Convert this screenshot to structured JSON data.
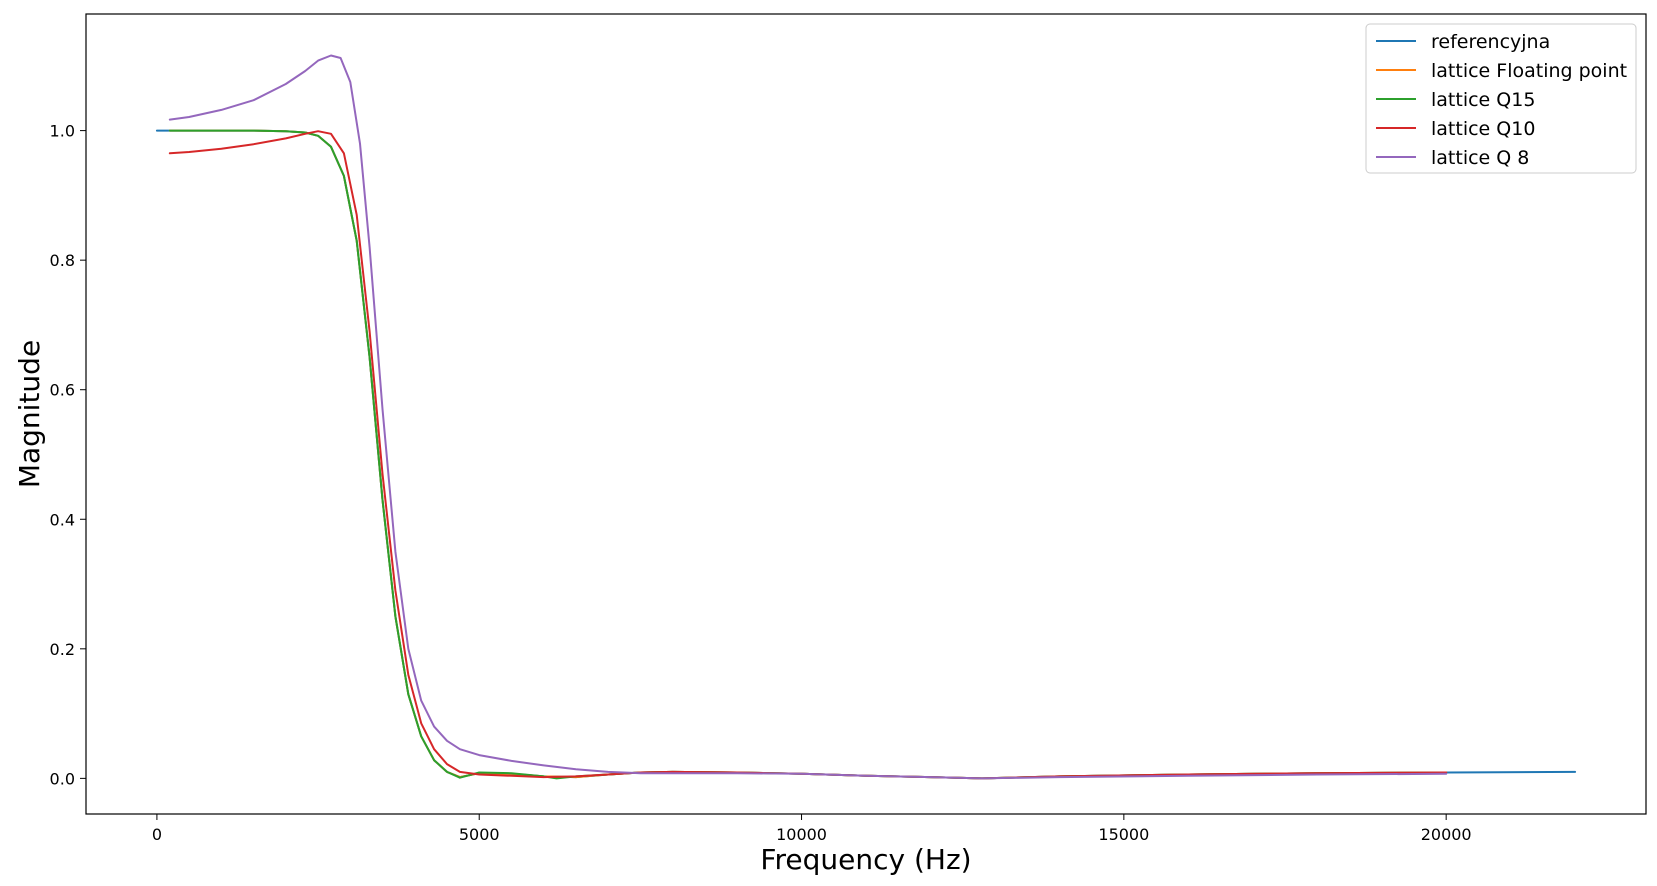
{
  "chart_data": {
    "type": "line",
    "xlabel": "Frequency (Hz)",
    "ylabel": "Magnitude",
    "xlim": [
      -1100,
      23100
    ],
    "ylim": [
      -0.055,
      1.18
    ],
    "xticks": [
      0,
      5000,
      10000,
      15000,
      20000
    ],
    "xtick_labels": [
      "0",
      "5000",
      "10000",
      "15000",
      "20000"
    ],
    "yticks": [
      0.0,
      0.2,
      0.4,
      0.6,
      0.8,
      1.0
    ],
    "ytick_labels": [
      "0.0",
      "0.2",
      "0.4",
      "0.6",
      "0.8",
      "1.0"
    ],
    "grid": false,
    "legend_position": "top-right",
    "series": [
      {
        "name": "referencyjna",
        "color": "#1f77b4",
        "x": [
          0,
          500,
          1000,
          1500,
          2000,
          2300,
          2500,
          2700,
          2900,
          3100,
          3300,
          3500,
          3700,
          3900,
          4100,
          4300,
          4500,
          4700,
          5000,
          5500,
          6000,
          6500,
          7000,
          7500,
          8000,
          9000,
          10000,
          11000,
          12000,
          12800,
          14000,
          16000,
          18000,
          20000,
          22000
        ],
        "y": [
          1.0,
          1.0,
          1.0,
          1.0,
          0.999,
          0.997,
          0.992,
          0.975,
          0.93,
          0.83,
          0.65,
          0.43,
          0.25,
          0.13,
          0.065,
          0.028,
          0.01,
          0.002,
          0.008,
          0.007,
          0.003,
          0.002,
          0.006,
          0.009,
          0.01,
          0.009,
          0.007,
          0.004,
          0.002,
          0.0,
          0.003,
          0.006,
          0.008,
          0.009,
          0.01
        ]
      },
      {
        "name": "lattice Floating point",
        "color": "#ff7f0e",
        "x": [
          200,
          500,
          1000,
          1500,
          2000,
          2300,
          2500,
          2700,
          2900,
          3100,
          3300,
          3500,
          3700,
          3900,
          4100,
          4300,
          4500,
          4700,
          5000,
          5500,
          6000,
          6500,
          7000,
          7500,
          8000,
          9000,
          10000,
          11000,
          12000,
          12800,
          14000,
          16000,
          18000,
          20000
        ],
        "y": [
          1.0,
          1.0,
          1.0,
          1.0,
          0.999,
          0.997,
          0.992,
          0.975,
          0.93,
          0.83,
          0.65,
          0.43,
          0.25,
          0.13,
          0.065,
          0.028,
          0.01,
          0.002,
          0.008,
          0.007,
          0.003,
          0.002,
          0.006,
          0.009,
          0.01,
          0.009,
          0.007,
          0.004,
          0.002,
          0.0,
          0.003,
          0.006,
          0.008,
          0.009
        ]
      },
      {
        "name": "lattice Q15",
        "color": "#2ca02c",
        "x": [
          200,
          500,
          1000,
          1500,
          2000,
          2300,
          2500,
          2700,
          2900,
          3100,
          3300,
          3500,
          3700,
          3900,
          4100,
          4300,
          4500,
          4700,
          5000,
          5500,
          6000,
          6200,
          6500,
          7000,
          7500,
          8000,
          9000,
          10000,
          11000,
          12000,
          12800,
          14000,
          16000,
          18000,
          20000
        ],
        "y": [
          1.0,
          1.0,
          1.0,
          1.0,
          0.999,
          0.997,
          0.992,
          0.975,
          0.93,
          0.83,
          0.65,
          0.43,
          0.25,
          0.13,
          0.065,
          0.028,
          0.01,
          0.001,
          0.009,
          0.008,
          0.003,
          0.0,
          0.003,
          0.006,
          0.009,
          0.01,
          0.009,
          0.007,
          0.004,
          0.002,
          0.0,
          0.003,
          0.006,
          0.008,
          0.009
        ]
      },
      {
        "name": "lattice Q10",
        "color": "#d62728",
        "x": [
          200,
          500,
          1000,
          1500,
          2000,
          2300,
          2500,
          2700,
          2900,
          3100,
          3300,
          3500,
          3700,
          3900,
          4100,
          4300,
          4500,
          4700,
          5000,
          5500,
          6000,
          6500,
          7000,
          7500,
          8000,
          9000,
          10000,
          11000,
          12000,
          12800,
          14000,
          16000,
          18000,
          20000
        ],
        "y": [
          0.965,
          0.967,
          0.972,
          0.979,
          0.988,
          0.995,
          0.999,
          0.995,
          0.965,
          0.87,
          0.69,
          0.47,
          0.29,
          0.16,
          0.085,
          0.045,
          0.022,
          0.01,
          0.006,
          0.004,
          0.002,
          0.003,
          0.006,
          0.009,
          0.01,
          0.009,
          0.007,
          0.004,
          0.002,
          0.0,
          0.003,
          0.006,
          0.008,
          0.009
        ]
      },
      {
        "name": "lattice Q 8",
        "color": "#9467bd",
        "x": [
          200,
          500,
          1000,
          1500,
          2000,
          2300,
          2500,
          2700,
          2850,
          3000,
          3150,
          3300,
          3500,
          3700,
          3900,
          4100,
          4300,
          4500,
          4700,
          5000,
          5500,
          6000,
          6500,
          7000,
          7500,
          8000,
          9000,
          10000,
          11000,
          12000,
          12800,
          14000,
          16000,
          18000,
          20000
        ],
        "y": [
          1.017,
          1.021,
          1.032,
          1.047,
          1.072,
          1.092,
          1.108,
          1.116,
          1.112,
          1.075,
          0.98,
          0.82,
          0.57,
          0.35,
          0.2,
          0.12,
          0.08,
          0.058,
          0.045,
          0.036,
          0.027,
          0.02,
          0.014,
          0.01,
          0.008,
          0.008,
          0.008,
          0.007,
          0.004,
          0.002,
          0.0,
          0.002,
          0.004,
          0.006,
          0.007
        ]
      }
    ]
  }
}
